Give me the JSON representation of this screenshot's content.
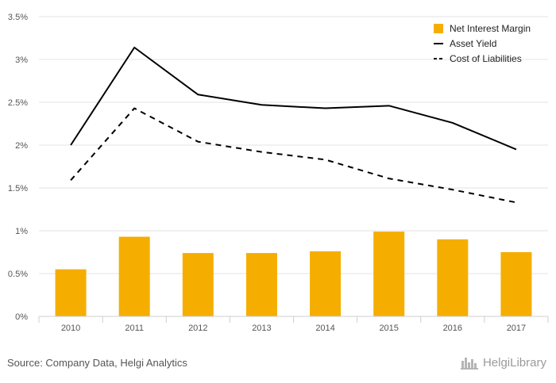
{
  "chart_data": {
    "type": "bar+line",
    "categories": [
      "2010",
      "2011",
      "2012",
      "2013",
      "2014",
      "2015",
      "2016",
      "2017"
    ],
    "series": [
      {
        "name": "Net Interest Margin",
        "kind": "bar",
        "color": "#F5AE00",
        "values": [
          0.55,
          0.93,
          0.74,
          0.74,
          0.76,
          0.99,
          0.9,
          0.75
        ]
      },
      {
        "name": "Asset Yield",
        "kind": "line",
        "style": "solid",
        "color": "#000000",
        "values": [
          2.0,
          3.14,
          2.59,
          2.47,
          2.43,
          2.46,
          2.26,
          1.95
        ]
      },
      {
        "name": "Cost of Liabilities",
        "kind": "line",
        "style": "dashed",
        "color": "#000000",
        "values": [
          1.59,
          2.43,
          2.04,
          1.92,
          1.83,
          1.61,
          1.48,
          1.33
        ]
      }
    ],
    "ylim": [
      0,
      3.5
    ],
    "yticks": [
      0,
      0.5,
      1,
      1.5,
      2,
      2.5,
      3,
      3.5
    ],
    "ytick_labels": [
      "0%",
      "0.5%",
      "1%",
      "1.5%",
      "2%",
      "2.5%",
      "3%",
      "3.5%"
    ],
    "grid": true,
    "legend_position": "top-right"
  },
  "footer": {
    "source": "Source: Company Data, Helgi Analytics",
    "brand": "HelgiLibrary"
  }
}
